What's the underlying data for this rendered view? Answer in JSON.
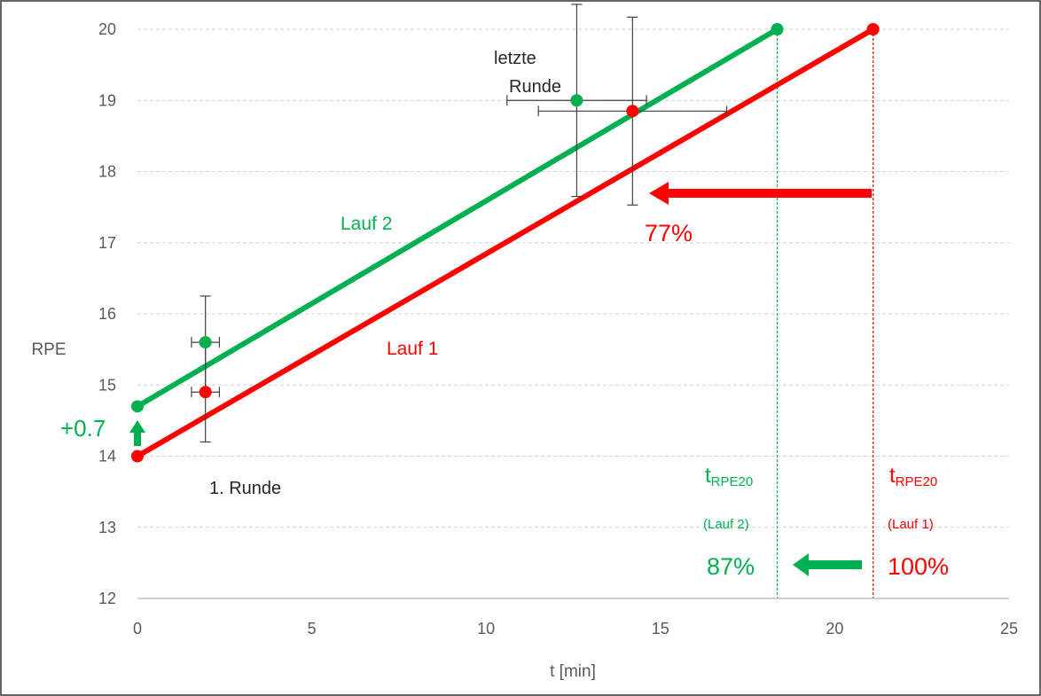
{
  "chart_data": {
    "type": "line",
    "xlabel": "t [min]",
    "ylabel": "RPE",
    "xlim": [
      0,
      25
    ],
    "ylim": [
      12,
      20
    ],
    "x_ticks": [
      0,
      5,
      10,
      15,
      20,
      25
    ],
    "y_ticks": [
      12,
      13,
      14,
      15,
      16,
      17,
      18,
      19,
      20
    ],
    "grid": "horizontal-dashed",
    "colors": {
      "lauf1": "#ff0000",
      "lauf2": "#00b050",
      "axis": "#595959",
      "grid": "#d0d0d0",
      "errorbar": "#404040"
    },
    "series": [
      {
        "name": "Lauf 1",
        "color": "#ff0000",
        "line": [
          [
            0,
            14.0
          ],
          [
            21.1,
            20.0
          ]
        ],
        "points": [
          {
            "x": 1.95,
            "y": 14.9,
            "xerr": 0.4,
            "yerr": 0.7
          },
          {
            "x": 14.2,
            "y": 18.85,
            "xerr": 2.7,
            "yerr": 1.32
          }
        ]
      },
      {
        "name": "Lauf 2",
        "color": "#00b050",
        "line": [
          [
            0,
            14.7
          ],
          [
            18.35,
            20.0
          ]
        ],
        "points": [
          {
            "x": 1.95,
            "y": 15.6,
            "xerr": 0.4,
            "yerr": 0.65
          },
          {
            "x": 12.6,
            "y": 19.0,
            "xerr": 2.0,
            "yerr": 1.35
          }
        ]
      }
    ],
    "vlines": [
      {
        "x": 18.35,
        "color": "#00b050"
      },
      {
        "x": 21.1,
        "color": "#ff0000"
      }
    ]
  },
  "annotations": {
    "series_label_lauf2": "Lauf 2",
    "series_label_lauf1": "Lauf 1",
    "first_round": "1. Runde",
    "last_round_line1": "letzte",
    "last_round_line2": "Runde",
    "offset_label": "+0.7",
    "pct_last_round": "77%",
    "pct_lauf2": "87%",
    "pct_lauf1": "100%",
    "t_symbol": "t",
    "t_sub": "RPE20",
    "run2_paren": "(Lauf 2)",
    "run1_paren": "(Lauf 1)"
  }
}
